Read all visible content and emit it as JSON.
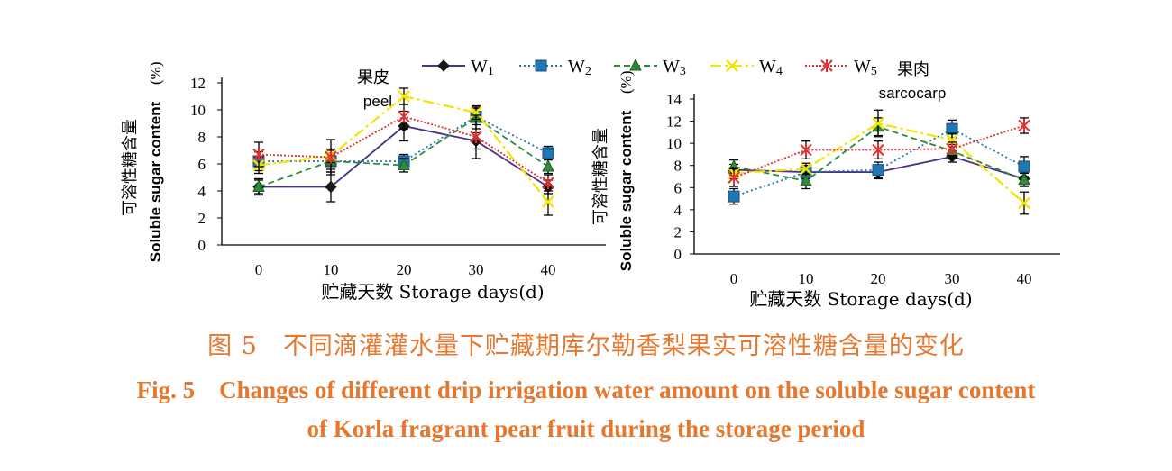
{
  "colors": {
    "W1": "#4B2F8A",
    "W2": "#1F77B4",
    "W3": "#2E8B3A",
    "W4": "#F2E600",
    "W5": "#E03030",
    "caption": "#E5782E",
    "axis": "#000000"
  },
  "legend": {
    "entries": [
      "W1",
      "W2",
      "W3",
      "W4",
      "W5"
    ],
    "subscripts": [
      "1",
      "2",
      "3",
      "4",
      "5"
    ]
  },
  "chart_data": [
    {
      "type": "line",
      "panel_label_cn": "果皮",
      "panel_label_en": "peel",
      "ylabel_cn": "可溶性糖含量",
      "ylabel_en": "Soluble sugar content",
      "ylabel_unit": "(%)",
      "xlabel": "贮藏天数 Storage days(d)",
      "x": [
        0,
        10,
        20,
        30,
        40
      ],
      "ylim": [
        0,
        12
      ],
      "yticks": [
        0,
        2,
        4,
        6,
        8,
        10,
        12
      ],
      "series": [
        {
          "name": "W1",
          "values": [
            4.3,
            4.3,
            8.8,
            7.7,
            4.3
          ],
          "errors": [
            0.6,
            1.1,
            1.1,
            0.6,
            0.5
          ]
        },
        {
          "name": "W2",
          "values": [
            6.2,
            6.2,
            6.2,
            9.5,
            6.8
          ],
          "errors": [
            0.7,
            0.8,
            0.5,
            0.6,
            0.5
          ]
        },
        {
          "name": "W3",
          "values": [
            4.3,
            6.2,
            5.9,
            9.4,
            5.8
          ],
          "errors": [
            0.5,
            0.6,
            0.5,
            0.8,
            0.5
          ]
        },
        {
          "name": "W4",
          "values": [
            5.9,
            6.6,
            11.0,
            9.8,
            3.2
          ],
          "errors": [
            0.6,
            0.5,
            0.6,
            0.5,
            1.0
          ]
        },
        {
          "name": "W5",
          "values": [
            6.7,
            6.5,
            9.5,
            8.0,
            4.6
          ],
          "errors": [
            0.9,
            1.3,
            0.9,
            1.6,
            0.6
          ]
        }
      ]
    },
    {
      "type": "line",
      "panel_label_cn": "果肉",
      "panel_label_en": "sarcocarp",
      "ylabel_cn": "可溶性糖含量",
      "ylabel_en": "Soluble sugar content",
      "ylabel_unit": "(%)",
      "xlabel": "贮藏天数 Storage days(d)",
      "x": [
        0,
        10,
        20,
        30,
        40
      ],
      "ylim": [
        0,
        14
      ],
      "yticks": [
        0,
        2,
        4,
        6,
        8,
        10,
        12,
        14
      ],
      "series": [
        {
          "name": "W1",
          "values": [
            7.6,
            7.4,
            7.4,
            8.8,
            6.8
          ],
          "errors": [
            0.5,
            0.6,
            0.6,
            0.5,
            0.5
          ]
        },
        {
          "name": "W2",
          "values": [
            5.2,
            7.4,
            7.6,
            11.3,
            7.9
          ],
          "errors": [
            0.7,
            0.6,
            0.7,
            0.8,
            0.9
          ]
        },
        {
          "name": "W3",
          "values": [
            7.9,
            6.6,
            11.5,
            9.3,
            6.7
          ],
          "errors": [
            0.6,
            0.7,
            0.8,
            0.6,
            0.6
          ]
        },
        {
          "name": "W4",
          "values": [
            7.3,
            7.7,
            11.8,
            10.3,
            4.6
          ],
          "errors": [
            0.5,
            0.5,
            1.2,
            0.6,
            1.0
          ]
        },
        {
          "name": "W5",
          "values": [
            6.9,
            9.4,
            9.4,
            9.5,
            11.6
          ],
          "errors": [
            0.8,
            0.8,
            0.8,
            0.6,
            0.7
          ]
        }
      ]
    }
  ],
  "caption": {
    "cn": "图 5　不同滴灌灌水量下贮藏期库尔勒香梨果实可溶性糖含量的变化",
    "en_line1": "Fig. 5　Changes of different drip irrigation water amount on the soluble sugar content",
    "en_line2": "of Korla fragrant pear fruit during the storage period"
  }
}
